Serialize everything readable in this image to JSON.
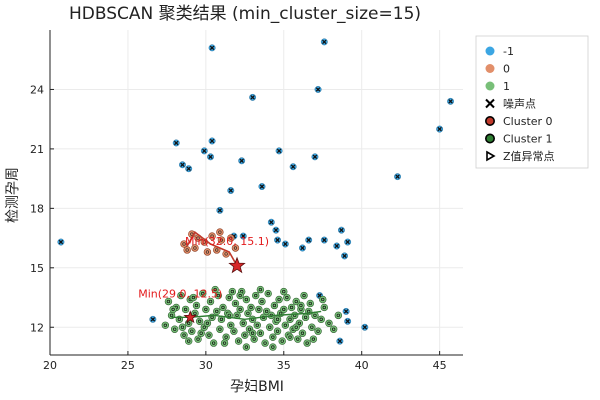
{
  "colors": {
    "noise": "#3ca6e3",
    "cluster0": "#e28f6a",
    "cluster1": "#78bf78",
    "path0": "#c0392b",
    "path1": "#2e7d32",
    "star": "#d62728",
    "annotation": "#e31a1c",
    "grid": "#ebebeb",
    "axis": "#222222"
  },
  "chart_data": {
    "type": "scatter",
    "title": "HDBSCAN 聚类结果 (min_cluster_size=15)",
    "xlabel": "孕妇BMI",
    "ylabel": "检测孕周",
    "xlim": [
      20,
      46.5
    ],
    "ylim": [
      10.6,
      27.0
    ],
    "x_ticks": [
      20,
      25,
      30,
      35,
      40,
      45
    ],
    "y_ticks": [
      12,
      15,
      18,
      21,
      24
    ],
    "x_tick_labels": [
      "20",
      "25",
      "30",
      "35",
      "40",
      "45"
    ],
    "y_tick_labels": [
      "12",
      "15",
      "18",
      "21",
      "24"
    ],
    "grid": true,
    "legend_position": "top-right outside",
    "legend": [
      {
        "label": "-1",
        "marker": "circle",
        "color_key": "noise"
      },
      {
        "label": "0",
        "marker": "circle",
        "color_key": "cluster0"
      },
      {
        "label": "1",
        "marker": "circle",
        "color_key": "cluster1"
      },
      {
        "label": "噪声点",
        "marker": "x",
        "color_key": "axis"
      },
      {
        "label": "Cluster 0",
        "marker": "ring",
        "color_key": "path0"
      },
      {
        "label": "Cluster 1",
        "marker": "ring",
        "color_key": "path1"
      },
      {
        "label": "Z值异常点",
        "marker": "triangle",
        "color_key": "axis"
      }
    ],
    "noise_points": [
      [
        20.7,
        16.3
      ],
      [
        26.6,
        12.4
      ],
      [
        28.1,
        21.3
      ],
      [
        28.5,
        20.2
      ],
      [
        28.9,
        20.0
      ],
      [
        29.9,
        20.9
      ],
      [
        30.3,
        20.6
      ],
      [
        30.4,
        21.4
      ],
      [
        30.4,
        26.1
      ],
      [
        30.9,
        17.9
      ],
      [
        31.6,
        18.9
      ],
      [
        31.8,
        16.6
      ],
      [
        32.3,
        20.4
      ],
      [
        32.4,
        16.6
      ],
      [
        33.0,
        23.6
      ],
      [
        33.6,
        19.1
      ],
      [
        34.2,
        17.3
      ],
      [
        34.5,
        16.9
      ],
      [
        34.7,
        20.9
      ],
      [
        35.1,
        16.2
      ],
      [
        35.6,
        20.1
      ],
      [
        36.2,
        16.0
      ],
      [
        36.6,
        16.4
      ],
      [
        37.0,
        20.6
      ],
      [
        37.2,
        24.0
      ],
      [
        37.6,
        16.4
      ],
      [
        37.6,
        26.4
      ],
      [
        38.4,
        16.1
      ],
      [
        38.6,
        11.3
      ],
      [
        38.7,
        16.9
      ],
      [
        38.9,
        15.6
      ],
      [
        39.0,
        12.8
      ],
      [
        39.1,
        12.3
      ],
      [
        39.1,
        16.3
      ],
      [
        40.2,
        12.0
      ],
      [
        42.3,
        19.6
      ],
      [
        45.0,
        22.0
      ],
      [
        45.7,
        23.4
      ],
      [
        34.6,
        16.4
      ],
      [
        37.3,
        13.6
      ]
    ],
    "cluster0_points": [
      [
        28.6,
        16.2
      ],
      [
        28.8,
        15.9
      ],
      [
        29.1,
        16.7
      ],
      [
        29.5,
        16.5
      ],
      [
        29.9,
        16.3
      ],
      [
        30.1,
        15.8
      ],
      [
        30.4,
        16.6
      ],
      [
        30.7,
        15.9
      ],
      [
        31.0,
        16.4
      ],
      [
        31.3,
        15.7
      ],
      [
        31.6,
        16.5
      ],
      [
        31.9,
        16.0
      ],
      [
        29.3,
        16.0
      ],
      [
        30.9,
        16.8
      ]
    ],
    "cluster1_points": [
      [
        27.4,
        12.1
      ],
      [
        27.6,
        13.3
      ],
      [
        27.8,
        12.6
      ],
      [
        28.0,
        11.9
      ],
      [
        28.1,
        13.0
      ],
      [
        28.3,
        12.4
      ],
      [
        28.4,
        13.6
      ],
      [
        28.6,
        11.6
      ],
      [
        28.7,
        12.9
      ],
      [
        28.9,
        12.2
      ],
      [
        29.0,
        13.4
      ],
      [
        29.1,
        11.8
      ],
      [
        29.3,
        12.7
      ],
      [
        29.4,
        13.1
      ],
      [
        29.5,
        11.4
      ],
      [
        29.6,
        12.3
      ],
      [
        29.8,
        13.7
      ],
      [
        29.9,
        12.0
      ],
      [
        30.0,
        12.9
      ],
      [
        30.2,
        11.6
      ],
      [
        30.3,
        13.3
      ],
      [
        30.4,
        12.5
      ],
      [
        30.5,
        11.2
      ],
      [
        30.7,
        12.8
      ],
      [
        30.8,
        13.6
      ],
      [
        30.9,
        11.9
      ],
      [
        31.0,
        12.4
      ],
      [
        31.1,
        13.0
      ],
      [
        31.3,
        11.5
      ],
      [
        31.4,
        12.7
      ],
      [
        31.5,
        13.5
      ],
      [
        31.6,
        12.1
      ],
      [
        31.8,
        11.8
      ],
      [
        31.9,
        13.2
      ],
      [
        32.0,
        12.6
      ],
      [
        32.1,
        11.3
      ],
      [
        32.2,
        12.9
      ],
      [
        32.3,
        13.8
      ],
      [
        32.4,
        12.2
      ],
      [
        32.5,
        11.6
      ],
      [
        32.6,
        13.4
      ],
      [
        32.7,
        12.7
      ],
      [
        32.8,
        11.9
      ],
      [
        32.9,
        13.0
      ],
      [
        33.0,
        12.4
      ],
      [
        33.1,
        11.4
      ],
      [
        33.2,
        13.6
      ],
      [
        33.3,
        12.1
      ],
      [
        33.4,
        12.9
      ],
      [
        33.5,
        11.7
      ],
      [
        33.6,
        13.3
      ],
      [
        33.7,
        12.5
      ],
      [
        33.8,
        11.2
      ],
      [
        33.9,
        12.8
      ],
      [
        34.0,
        13.7
      ],
      [
        34.1,
        12.0
      ],
      [
        34.2,
        12.6
      ],
      [
        34.3,
        11.5
      ],
      [
        34.4,
        13.1
      ],
      [
        34.5,
        12.3
      ],
      [
        34.6,
        11.8
      ],
      [
        34.7,
        13.4
      ],
      [
        34.8,
        12.7
      ],
      [
        34.9,
        11.3
      ],
      [
        35.0,
        12.9
      ],
      [
        35.1,
        12.1
      ],
      [
        35.2,
        13.5
      ],
      [
        35.3,
        11.6
      ],
      [
        35.4,
        12.4
      ],
      [
        35.5,
        13.0
      ],
      [
        35.6,
        11.9
      ],
      [
        35.7,
        12.6
      ],
      [
        35.8,
        13.3
      ],
      [
        35.9,
        11.4
      ],
      [
        36.0,
        12.2
      ],
      [
        36.1,
        12.9
      ],
      [
        36.2,
        11.7
      ],
      [
        36.3,
        13.6
      ],
      [
        36.4,
        12.5
      ],
      [
        36.5,
        11.2
      ],
      [
        36.6,
        12.8
      ],
      [
        36.7,
        13.2
      ],
      [
        36.8,
        12.0
      ],
      [
        37.0,
        12.6
      ],
      [
        37.2,
        11.8
      ],
      [
        37.4,
        12.4
      ],
      [
        37.6,
        13.0
      ],
      [
        37.9,
        12.2
      ],
      [
        38.2,
        11.9
      ],
      [
        38.5,
        12.6
      ],
      [
        27.9,
        12.9
      ],
      [
        28.5,
        12.0
      ],
      [
        29.2,
        13.5
      ],
      [
        29.7,
        11.7
      ],
      [
        30.6,
        13.9
      ],
      [
        31.2,
        11.2
      ],
      [
        31.7,
        13.8
      ],
      [
        32.6,
        11.0
      ],
      [
        33.5,
        13.9
      ],
      [
        34.3,
        11.0
      ],
      [
        35.0,
        13.8
      ],
      [
        35.8,
        12.0
      ],
      [
        36.9,
        11.4
      ],
      [
        30.1,
        12.2
      ],
      [
        31.5,
        12.6
      ],
      [
        33.0,
        11.7
      ],
      [
        34.6,
        12.4
      ],
      [
        36.1,
        13.1
      ],
      [
        28.9,
        11.3
      ],
      [
        32.2,
        13.6
      ],
      [
        35.4,
        11.5
      ],
      [
        37.5,
        13.4
      ]
    ],
    "cluster0_path": [
      [
        28.8,
        16.1
      ],
      [
        29.3,
        16.8
      ],
      [
        30.3,
        16.2
      ],
      [
        31.5,
        15.8
      ],
      [
        32.0,
        15.1
      ]
    ],
    "cluster1_path": [
      [
        27.8,
        12.5
      ],
      [
        29.0,
        12.5
      ],
      [
        30.5,
        12.6
      ],
      [
        32.5,
        12.4
      ],
      [
        34.5,
        12.6
      ],
      [
        36.5,
        12.7
      ],
      [
        37.4,
        12.8
      ]
    ],
    "stars": [
      [
        32.0,
        15.1
      ],
      [
        29.0,
        12.5
      ]
    ],
    "annotations": [
      {
        "text": "Min(32.0, 15.1)",
        "x": 32.0,
        "y": 15.1
      },
      {
        "text": "Min(29.0, 12.5)",
        "x": 29.0,
        "y": 12.5
      }
    ]
  }
}
